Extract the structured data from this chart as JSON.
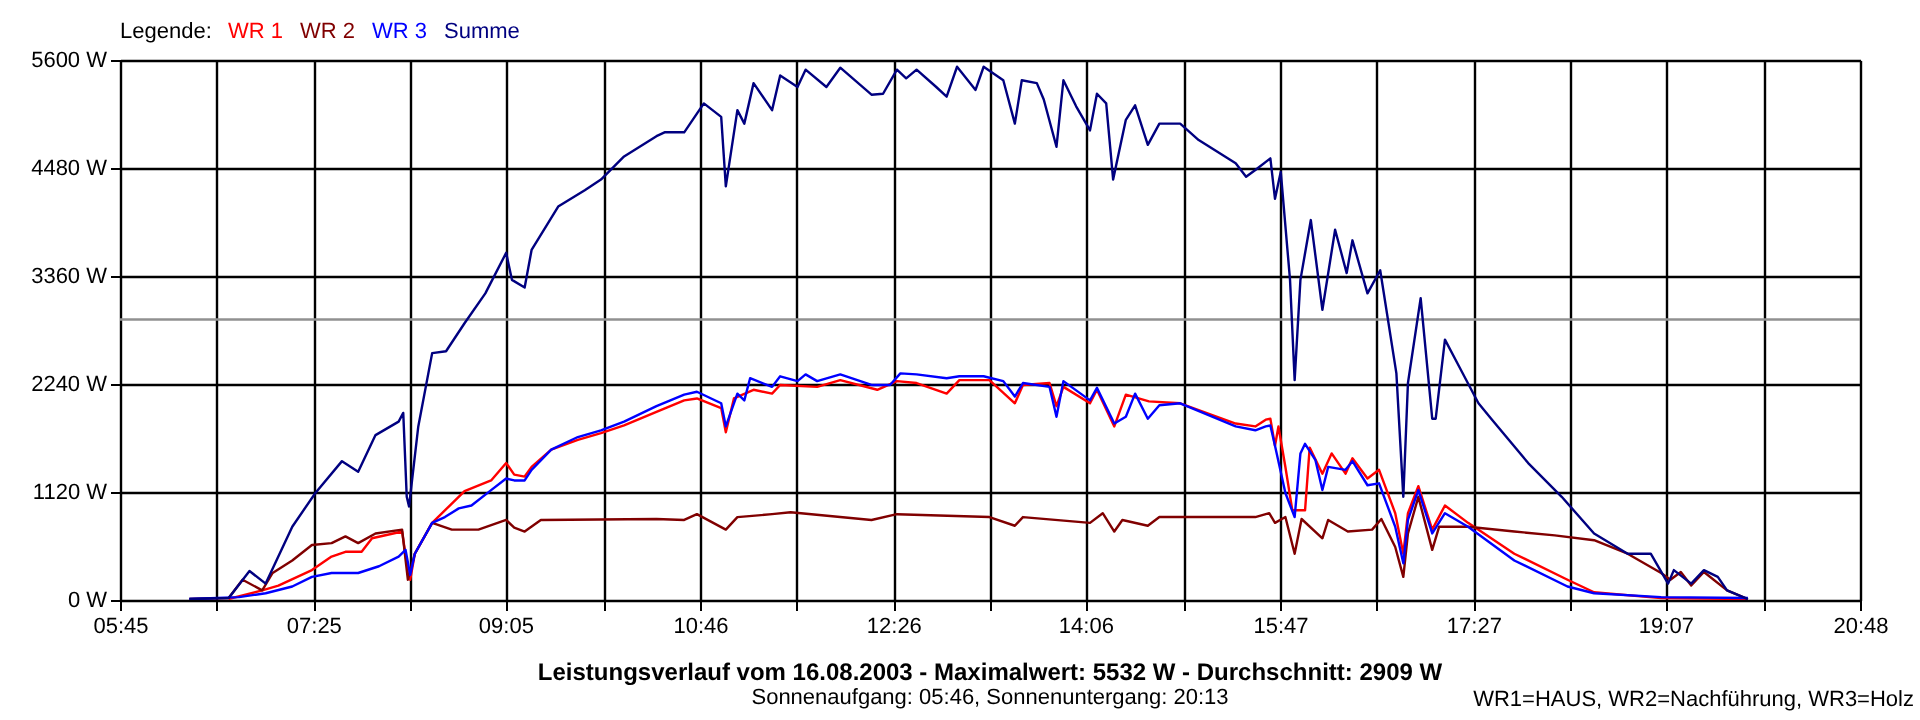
{
  "chart_data": {
    "type": "line",
    "title": "Leistungsverlauf vom 16.08.2003 - Maximalwert: 5532 W - Durchschnitt: 2909 W",
    "subtitle": "Sonnenaufgang: 05:46, Sonnenuntergang: 20:13",
    "annotations": [
      "WR1=HAUS, WR2=Nachführung, WR3=Holz"
    ],
    "legend_title": "Legende:",
    "legend": "top left",
    "grid": true,
    "xlim": [
      5.75,
      20.8
    ],
    "xticks": [
      {
        "value": 5.75,
        "label": "05:45"
      },
      {
        "value": 6.5861,
        "label": null
      },
      {
        "value": 7.4222,
        "label": "07:25"
      },
      {
        "value": 8.2583,
        "label": null
      },
      {
        "value": 9.0833,
        "label": "09:05"
      },
      {
        "value": 9.9306,
        "label": null
      },
      {
        "value": 10.7667,
        "label": "10:46"
      },
      {
        "value": 11.6028,
        "label": null
      },
      {
        "value": 12.4389,
        "label": "12:26"
      },
      {
        "value": 13.275,
        "label": null
      },
      {
        "value": 14.1,
        "label": "14:06"
      },
      {
        "value": 14.9472,
        "label": null
      },
      {
        "value": 15.7833,
        "label": "15:47"
      },
      {
        "value": 16.6194,
        "label": null
      },
      {
        "value": 17.4556,
        "label": "17:27"
      },
      {
        "value": 18.2917,
        "label": null
      },
      {
        "value": 19.1167,
        "label": "19:07"
      },
      {
        "value": 19.9639,
        "label": null
      },
      {
        "value": 20.8,
        "label": "20:48"
      }
    ],
    "ylim": [
      0,
      5600
    ],
    "yticks": [
      {
        "value": 0,
        "label": "0 W"
      },
      {
        "value": 1120,
        "label": "1120 W"
      },
      {
        "value": 2240,
        "label": "2240 W"
      },
      {
        "value": 3360,
        "label": "3360 W"
      },
      {
        "value": 4480,
        "label": "4480 W"
      },
      {
        "value": 5600,
        "label": "5600 W"
      }
    ],
    "ref_lines": [
      {
        "axis": "y",
        "value": 2909,
        "color": "#909090"
      }
    ],
    "series": [
      {
        "name": "WR 1",
        "color": "#ff0000",
        "x": [
          6.69,
          6.98,
          7.12,
          7.41,
          7.58,
          7.7,
          7.84,
          7.93,
          8.19,
          8.23,
          8.26,
          8.3,
          8.45,
          8.62,
          8.73,
          8.96,
          9.09,
          9.16,
          9.25,
          9.31,
          9.48,
          9.71,
          9.91,
          10.11,
          10.39,
          10.63,
          10.74,
          10.95,
          10.99,
          11.06,
          11.23,
          11.39,
          11.46,
          11.78,
          11.98,
          12.3,
          12.47,
          12.64,
          12.9,
          13.01,
          13.27,
          13.49,
          13.56,
          13.79,
          13.85,
          13.91,
          14.14,
          14.2,
          14.35,
          14.45,
          14.65,
          14.92,
          15.4,
          15.57,
          15.66,
          15.7,
          15.74,
          15.77,
          15.83,
          15.89,
          16.0,
          16.04,
          16.15,
          16.23,
          16.35,
          16.41,
          16.54,
          16.64,
          16.78,
          16.85,
          16.89,
          16.98,
          17.1,
          17.21,
          17.41,
          17.81,
          18.27,
          18.5,
          19.08,
          19.83
        ],
        "values": [
          10,
          100,
          150,
          310,
          450,
          500,
          500,
          640,
          710,
          380,
          210,
          480,
          800,
          1000,
          1130,
          1240,
          1420,
          1300,
          1280,
          1380,
          1560,
          1660,
          1730,
          1810,
          1950,
          2070,
          2090,
          1990,
          1740,
          2090,
          2180,
          2140,
          2230,
          2210,
          2280,
          2180,
          2270,
          2250,
          2140,
          2280,
          2280,
          2040,
          2230,
          2250,
          2010,
          2210,
          2040,
          2180,
          1800,
          2130,
          2060,
          2040,
          1830,
          1800,
          1870,
          1880,
          1600,
          1800,
          1380,
          930,
          930,
          1580,
          1310,
          1520,
          1310,
          1470,
          1260,
          1350,
          900,
          480,
          900,
          1180,
          730,
          980,
          800,
          480,
          210,
          80,
          20,
          10
        ]
      },
      {
        "name": "WR 2",
        "color": "#800000",
        "x": [
          6.35,
          6.69,
          6.81,
          6.98,
          7.07,
          7.24,
          7.41,
          7.58,
          7.7,
          7.81,
          7.96,
          8.19,
          8.24,
          8.3,
          8.45,
          8.62,
          8.85,
          9.09,
          9.16,
          9.25,
          9.39,
          10.39,
          10.63,
          10.74,
          10.99,
          11.09,
          11.39,
          11.55,
          12.25,
          12.47,
          13.27,
          13.49,
          13.56,
          14.14,
          14.25,
          14.35,
          14.42,
          14.64,
          14.74,
          15.57,
          15.69,
          15.74,
          15.83,
          15.91,
          15.97,
          16.15,
          16.2,
          16.37,
          16.58,
          16.66,
          16.78,
          16.85,
          16.89,
          16.98,
          17.1,
          17.16,
          17.41,
          17.81,
          18.16,
          18.5,
          18.79,
          19.08,
          19.16,
          19.25,
          19.34,
          19.45,
          19.65,
          19.83
        ],
        "values": [
          10,
          20,
          210,
          100,
          280,
          410,
          570,
          590,
          660,
          590,
          690,
          730,
          210,
          480,
          800,
          730,
          730,
          830,
          750,
          710,
          830,
          840,
          830,
          890,
          730,
          860,
          890,
          910,
          830,
          890,
          860,
          770,
          860,
          800,
          900,
          710,
          830,
          770,
          860,
          860,
          900,
          800,
          860,
          480,
          840,
          640,
          830,
          710,
          730,
          840,
          550,
          240,
          690,
          1070,
          520,
          760,
          760,
          710,
          670,
          620,
          480,
          280,
          210,
          290,
          150,
          290,
          100,
          10
        ]
      },
      {
        "name": "WR 3",
        "color": "#0000ff",
        "x": [
          6.35,
          6.78,
          7.01,
          7.24,
          7.41,
          7.58,
          7.81,
          7.99,
          8.16,
          8.22,
          8.26,
          8.3,
          8.45,
          8.56,
          8.68,
          8.79,
          8.96,
          9.09,
          9.16,
          9.25,
          9.31,
          9.48,
          9.71,
          9.91,
          10.11,
          10.39,
          10.63,
          10.74,
          10.95,
          10.99,
          11.09,
          11.15,
          11.2,
          11.39,
          11.46,
          11.61,
          11.68,
          11.78,
          11.98,
          12.25,
          12.41,
          12.5,
          12.64,
          12.9,
          13.01,
          13.22,
          13.39,
          13.49,
          13.56,
          13.79,
          13.85,
          13.91,
          14.14,
          14.2,
          14.35,
          14.45,
          14.53,
          14.64,
          14.74,
          14.92,
          15.4,
          15.57,
          15.66,
          15.7,
          15.74,
          15.83,
          15.91,
          15.96,
          16.0,
          16.09,
          16.15,
          16.2,
          16.35,
          16.41,
          16.54,
          16.64,
          16.78,
          16.85,
          16.89,
          16.98,
          17.1,
          17.21,
          17.41,
          17.81,
          18.27,
          18.5,
          19.08,
          19.83
        ],
        "values": [
          10,
          30,
          70,
          140,
          240,
          280,
          280,
          350,
          450,
          520,
          260,
          480,
          800,
          860,
          950,
          980,
          1140,
          1260,
          1240,
          1240,
          1350,
          1560,
          1690,
          1760,
          1850,
          2010,
          2130,
          2160,
          2040,
          1800,
          2140,
          2070,
          2300,
          2210,
          2320,
          2270,
          2340,
          2270,
          2340,
          2230,
          2230,
          2350,
          2340,
          2300,
          2320,
          2320,
          2270,
          2110,
          2250,
          2210,
          1900,
          2270,
          2070,
          2200,
          1830,
          1900,
          2140,
          1880,
          2020,
          2040,
          1800,
          1760,
          1800,
          1810,
          1600,
          1110,
          860,
          1520,
          1620,
          1450,
          1140,
          1380,
          1350,
          1440,
          1190,
          1210,
          760,
          380,
          830,
          1140,
          690,
          900,
          760,
          410,
          140,
          70,
          30,
          20
        ]
      },
      {
        "name": "Summe",
        "color": "#000080",
        "x": [
          6.35,
          6.69,
          6.87,
          7.01,
          7.24,
          7.44,
          7.67,
          7.81,
          7.96,
          8.16,
          8.2,
          8.23,
          8.25,
          8.33,
          8.45,
          8.57,
          8.73,
          8.91,
          9.09,
          9.14,
          9.25,
          9.31,
          9.54,
          9.77,
          9.91,
          10.11,
          10.39,
          10.46,
          10.63,
          10.8,
          10.95,
          10.99,
          11.09,
          11.15,
          11.23,
          11.39,
          11.46,
          11.61,
          11.68,
          11.86,
          11.98,
          12.25,
          12.35,
          12.47,
          12.55,
          12.64,
          12.81,
          12.9,
          12.99,
          13.15,
          13.22,
          13.39,
          13.49,
          13.55,
          13.68,
          13.74,
          13.85,
          13.91,
          14.02,
          14.14,
          14.2,
          14.28,
          14.34,
          14.45,
          14.53,
          14.64,
          14.74,
          14.92,
          15.08,
          15.4,
          15.49,
          15.57,
          15.7,
          15.74,
          15.79,
          15.87,
          15.91,
          15.96,
          16.05,
          16.15,
          16.26,
          16.36,
          16.41,
          16.54,
          16.65,
          16.79,
          16.85,
          16.89,
          17.0,
          17.1,
          17.13,
          17.21,
          17.32,
          17.5,
          17.61,
          17.93,
          18.22,
          18.5,
          18.79,
          18.99,
          19.14,
          19.19,
          19.34,
          19.45,
          19.57,
          19.65,
          19.83
        ],
        "values": [
          10,
          20,
          300,
          170,
          760,
          1110,
          1440,
          1330,
          1710,
          1850,
          1940,
          1070,
          970,
          1800,
          2560,
          2580,
          2870,
          3180,
          3600,
          3320,
          3240,
          3630,
          4080,
          4250,
          4360,
          4600,
          4810,
          4850,
          4850,
          5150,
          5010,
          4290,
          5080,
          4940,
          5360,
          5080,
          5440,
          5320,
          5500,
          5320,
          5520,
          5240,
          5250,
          5500,
          5410,
          5500,
          5320,
          5220,
          5530,
          5290,
          5530,
          5390,
          4940,
          5390,
          5360,
          5190,
          4700,
          5390,
          5120,
          4870,
          5250,
          5150,
          4360,
          4980,
          5130,
          4720,
          4940,
          4940,
          4770,
          4530,
          4390,
          4460,
          4580,
          4160,
          4440,
          3320,
          2280,
          3320,
          3940,
          3010,
          3840,
          3390,
          3730,
          3180,
          3420,
          2350,
          1070,
          2250,
          3130,
          1880,
          1880,
          2700,
          2450,
          2040,
          1880,
          1420,
          1070,
          690,
          480,
          480,
          170,
          310,
          170,
          310,
          240,
          100,
          10
        ]
      }
    ]
  }
}
